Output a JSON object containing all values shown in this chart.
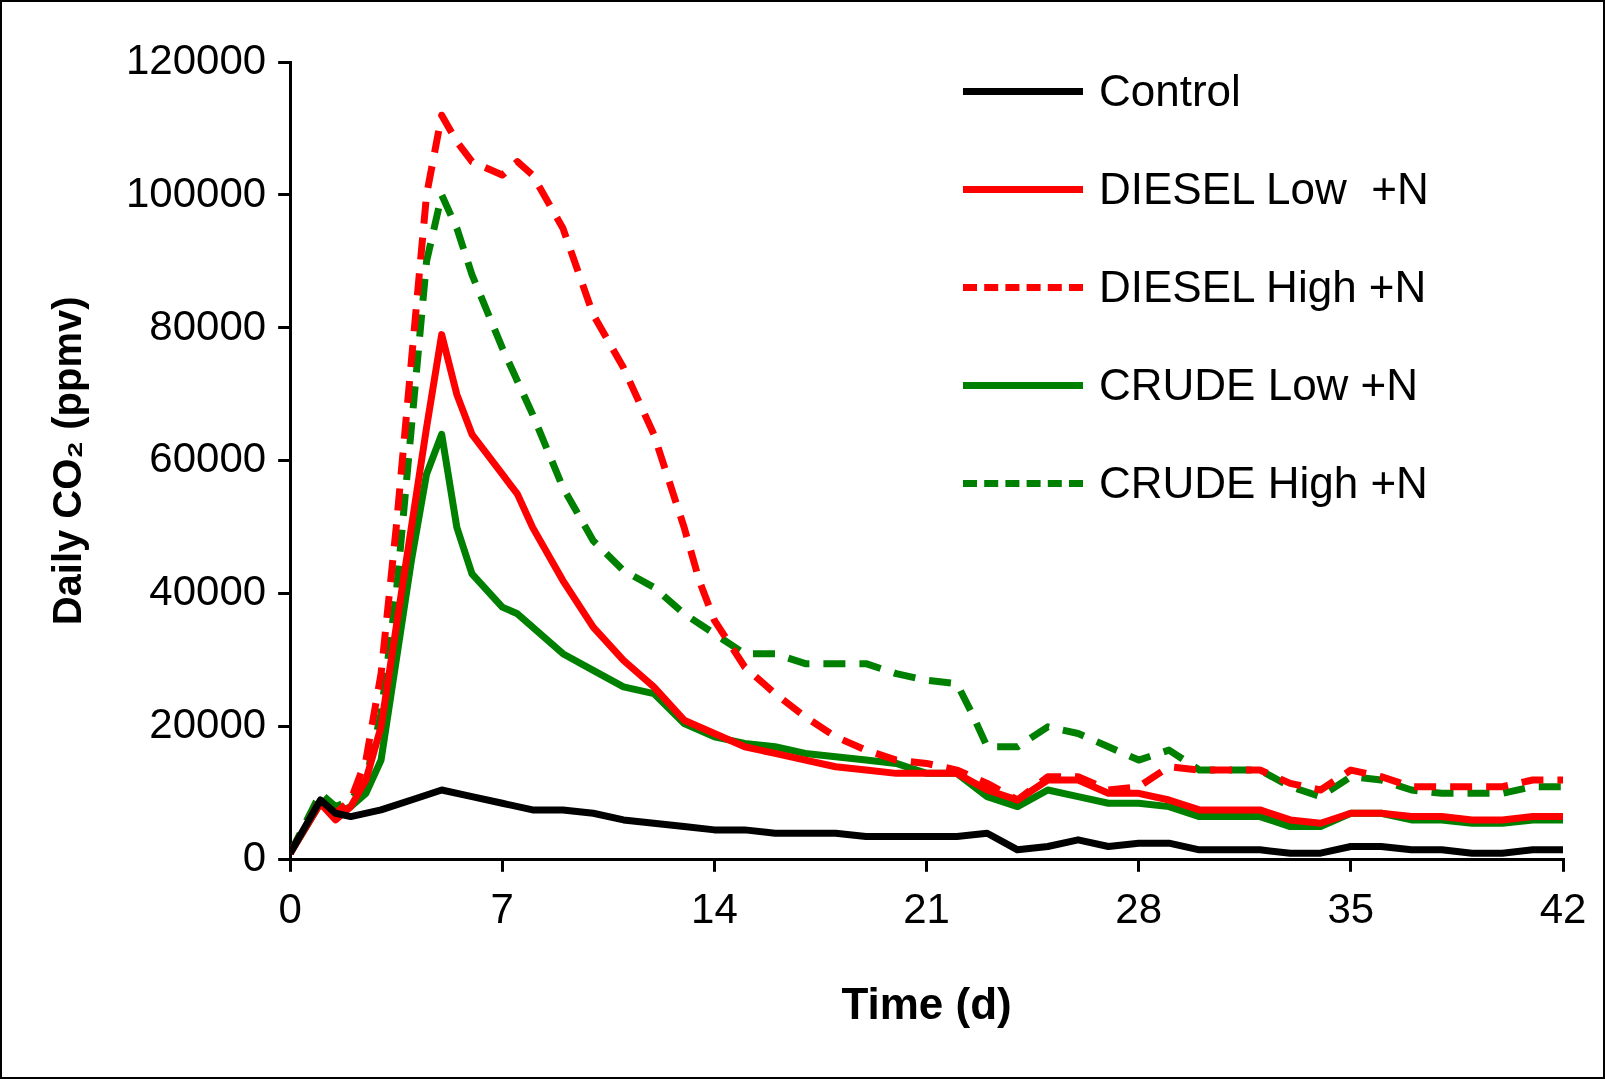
{
  "chart_data": {
    "type": "line",
    "xlabel": "Time (d)",
    "ylabel": "Daily CO₂ (ppmv)",
    "xlim": [
      0,
      42
    ],
    "xticks": [
      0,
      7,
      14,
      21,
      28,
      35,
      42
    ],
    "ylim": [
      0,
      120000
    ],
    "yticks": [
      0,
      20000,
      40000,
      60000,
      80000,
      100000,
      120000
    ],
    "grid": false,
    "legend": "top right",
    "marker": "none",
    "series": [
      {
        "name": "Control",
        "color": "#000000",
        "line_style": "solid",
        "x": [
          0,
          0.5,
          1,
          1.5,
          2,
          3,
          4,
          5,
          6,
          7,
          8,
          9,
          10,
          11,
          12,
          13,
          14,
          15,
          16,
          17,
          18,
          19,
          20,
          21,
          22,
          23,
          24,
          25,
          26,
          27,
          28,
          29,
          30,
          31,
          32,
          33,
          34,
          35,
          36,
          37,
          38,
          39,
          40,
          41,
          42
        ],
        "values": [
          1000,
          5000,
          9000,
          7000,
          6500,
          7500,
          9000,
          10500,
          9500,
          8500,
          7500,
          7500,
          7000,
          6000,
          5500,
          5000,
          4500,
          4500,
          4000,
          4000,
          4000,
          3500,
          3500,
          3500,
          3500,
          4000,
          1500,
          2000,
          3000,
          2000,
          2500,
          2500,
          1500,
          1500,
          1500,
          1000,
          1000,
          2000,
          2000,
          1500,
          1500,
          1000,
          1000,
          1500,
          1500
        ]
      },
      {
        "name": "DIESEL Low  +N",
        "color": "#ff0000",
        "line_style": "solid",
        "x": [
          0,
          1,
          1.5,
          2,
          2.5,
          3,
          3.5,
          4,
          4.5,
          5,
          5.5,
          6,
          7,
          7.5,
          8,
          9,
          10,
          11,
          12,
          13,
          14,
          15,
          16,
          17,
          18,
          19,
          20,
          21,
          22,
          23,
          24,
          25,
          26,
          27,
          28,
          29,
          30,
          31,
          32,
          33,
          34,
          35,
          36,
          37,
          38,
          39,
          40,
          41,
          42
        ],
        "values": [
          1000,
          8500,
          6000,
          8000,
          12000,
          20000,
          35000,
          50000,
          65000,
          79000,
          70000,
          64000,
          58000,
          55000,
          50000,
          42000,
          35000,
          30000,
          26000,
          21000,
          19000,
          17000,
          16000,
          15000,
          14000,
          13500,
          13000,
          13000,
          13000,
          10500,
          9000,
          12000,
          12000,
          10000,
          10000,
          9000,
          7500,
          7500,
          7500,
          6000,
          5500,
          7000,
          7000,
          6500,
          6500,
          6000,
          6000,
          6500,
          6500
        ]
      },
      {
        "name": "DIESEL High +N",
        "color": "#ff0000",
        "line_style": "dashed",
        "x": [
          0,
          1,
          1.5,
          2,
          2.5,
          3,
          3.5,
          4,
          4.5,
          5,
          5.5,
          6,
          7,
          7.5,
          8,
          9,
          10,
          11,
          12,
          13,
          13.5,
          14,
          15,
          16,
          17,
          18,
          19,
          20,
          21,
          22,
          23,
          24,
          25,
          26,
          27,
          28,
          29,
          30,
          31,
          32,
          33,
          34,
          35,
          36,
          37,
          38,
          39,
          40,
          41,
          42
        ],
        "values": [
          1000,
          9000,
          7000,
          9000,
          15000,
          28000,
          50000,
          75000,
          100000,
          112000,
          108000,
          105000,
          103000,
          105000,
          103000,
          95000,
          82000,
          74000,
          64000,
          50000,
          42000,
          36000,
          29000,
          25000,
          21500,
          18500,
          16500,
          15000,
          14500,
          13500,
          11500,
          9000,
          12500,
          12500,
          10500,
          11000,
          14000,
          13500,
          13500,
          13500,
          11500,
          10500,
          13500,
          12500,
          11000,
          11000,
          11000,
          11000,
          12000,
          12000
        ]
      },
      {
        "name": "CRUDE Low +N",
        "color": "#008000",
        "line_style": "solid",
        "x": [
          0,
          1,
          1.5,
          2,
          2.5,
          3,
          3.5,
          4,
          4.5,
          5,
          5.5,
          6,
          7,
          7.5,
          8,
          9,
          10,
          11,
          12,
          13,
          14,
          15,
          16,
          17,
          18,
          19,
          20,
          21,
          22,
          23,
          24,
          25,
          26,
          27,
          28,
          29,
          30,
          31,
          32,
          33,
          34,
          35,
          36,
          37,
          38,
          39,
          40,
          41,
          42
        ],
        "values": [
          1000,
          8500,
          7000,
          8000,
          10000,
          15000,
          30000,
          45000,
          58000,
          64000,
          50000,
          43000,
          38000,
          37000,
          35000,
          31000,
          28500,
          26000,
          25000,
          20500,
          18500,
          17500,
          17000,
          16000,
          15500,
          15000,
          14500,
          13000,
          13000,
          9500,
          8000,
          10500,
          9500,
          8500,
          8500,
          8000,
          6500,
          6500,
          6500,
          5000,
          5000,
          7000,
          7000,
          6000,
          6000,
          5500,
          5500,
          6000,
          6000
        ]
      },
      {
        "name": "CRUDE High +N",
        "color": "#008000",
        "line_style": "dashed",
        "x": [
          0,
          1,
          1.5,
          2,
          2.5,
          3,
          3.5,
          4,
          4.5,
          5,
          5.5,
          6,
          7,
          8,
          9,
          10,
          11,
          12,
          13,
          14,
          15,
          16,
          17,
          18,
          19,
          20,
          21,
          22,
          22.5,
          23,
          24,
          25,
          26,
          27,
          28,
          29,
          30,
          31,
          32,
          33,
          34,
          35,
          36,
          37,
          38,
          39,
          40,
          41,
          42
        ],
        "values": [
          1000,
          10000,
          8000,
          9000,
          12000,
          22000,
          40000,
          65000,
          90000,
          100000,
          95000,
          88000,
          77000,
          67000,
          56000,
          48000,
          43500,
          41000,
          37000,
          34000,
          31000,
          31000,
          29500,
          29500,
          29500,
          28000,
          27000,
          26500,
          22000,
          17000,
          17000,
          20000,
          19000,
          17000,
          15000,
          16500,
          13500,
          13500,
          13500,
          11000,
          9500,
          12500,
          12000,
          10500,
          10000,
          10000,
          10000,
          11000,
          11000
        ]
      }
    ]
  }
}
